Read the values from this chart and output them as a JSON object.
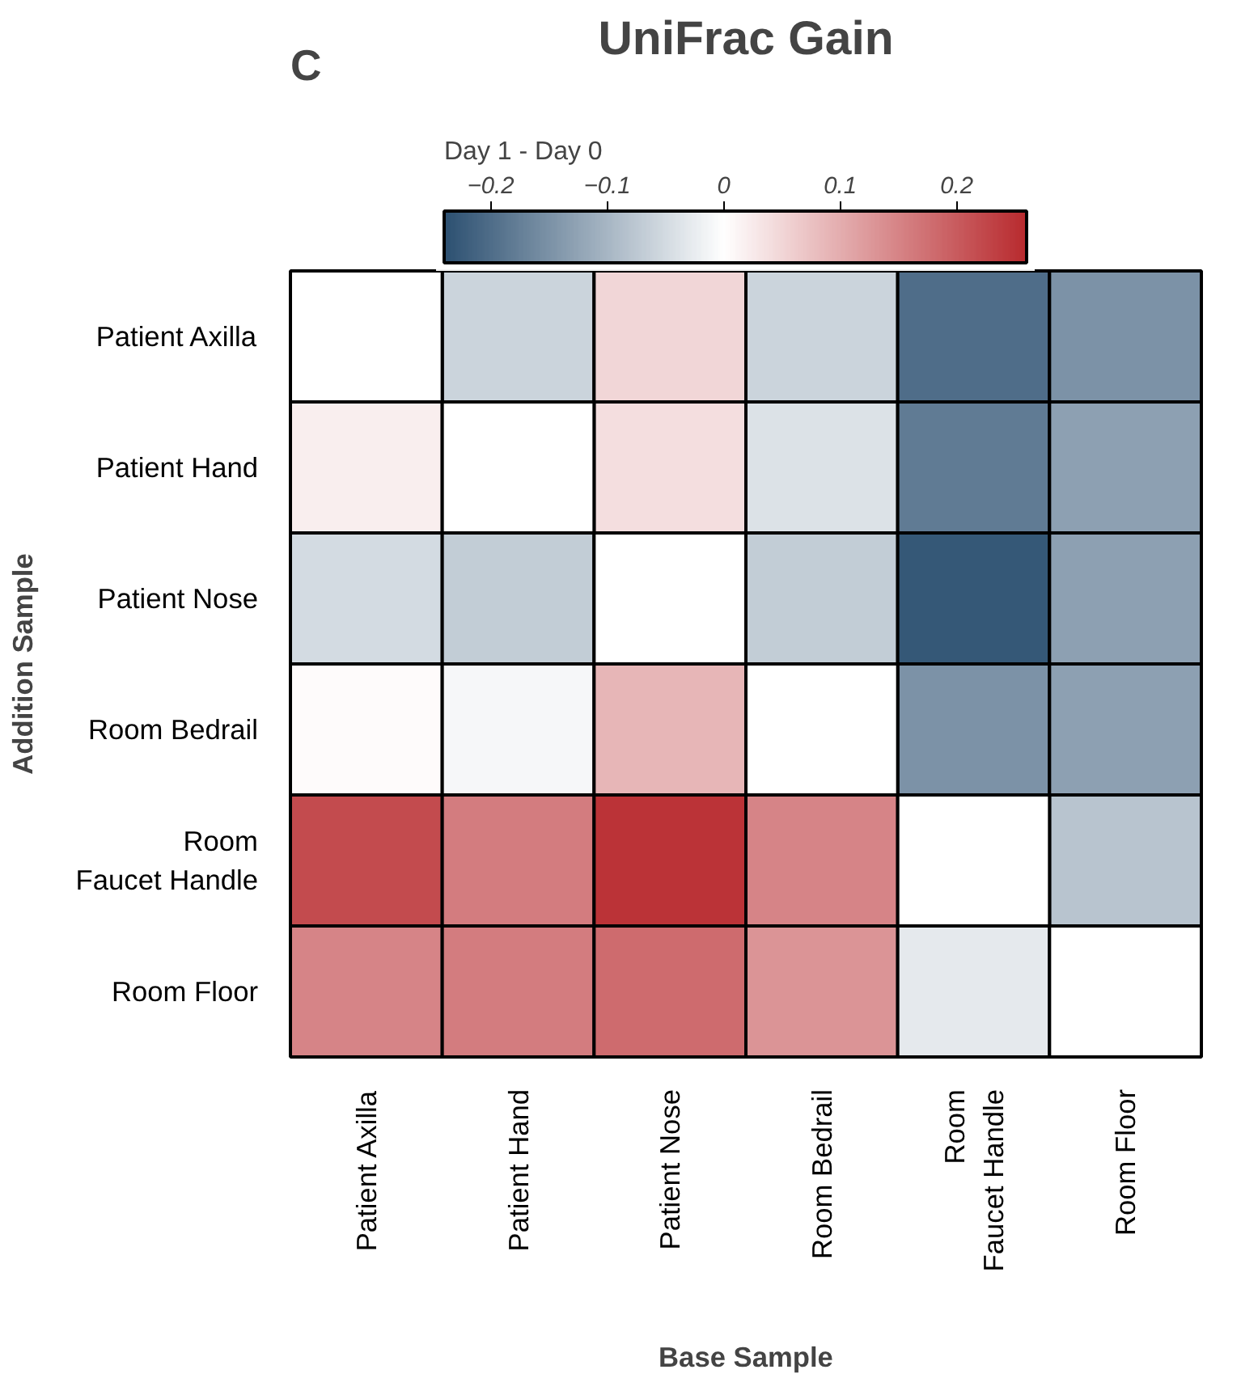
{
  "chart_data": {
    "type": "heatmap",
    "title": "UniFrac Gain",
    "xlabel": "Base Sample",
    "ylabel": "Addition Sample",
    "clabel": "Day 1 - Day 0",
    "annotations": [
      "C"
    ],
    "categories": [
      "Patient Axilla",
      "Patient Hand",
      "Patient Nose",
      "Room Bedrail",
      "Room\nFaucet Handle",
      "Room Floor"
    ],
    "y_categories": [
      "Patient Axilla",
      "Patient Hand",
      "Patient Nose",
      "Room Bedrail",
      "Room\nFaucet Handle",
      "Room Floor"
    ],
    "cells": [
      [
        null,
        -0.06,
        0.05,
        -0.06,
        -0.2,
        -0.15
      ],
      [
        0.02,
        null,
        0.04,
        -0.04,
        -0.18,
        -0.13
      ],
      [
        -0.05,
        -0.07,
        null,
        -0.07,
        -0.23,
        -0.13
      ],
      [
        0.005,
        -0.01,
        0.09,
        null,
        -0.15,
        -0.13
      ],
      [
        0.22,
        0.16,
        0.25,
        0.15,
        null,
        -0.08
      ],
      [
        0.15,
        0.16,
        0.18,
        0.13,
        -0.03,
        null
      ]
    ],
    "clim": [
      -0.24,
      0.26
    ],
    "cticks": [
      {
        "value": -0.2,
        "label": "−0.2"
      },
      {
        "value": -0.1,
        "label": "−0.1"
      },
      0,
      0.1,
      0.2
    ]
  }
}
